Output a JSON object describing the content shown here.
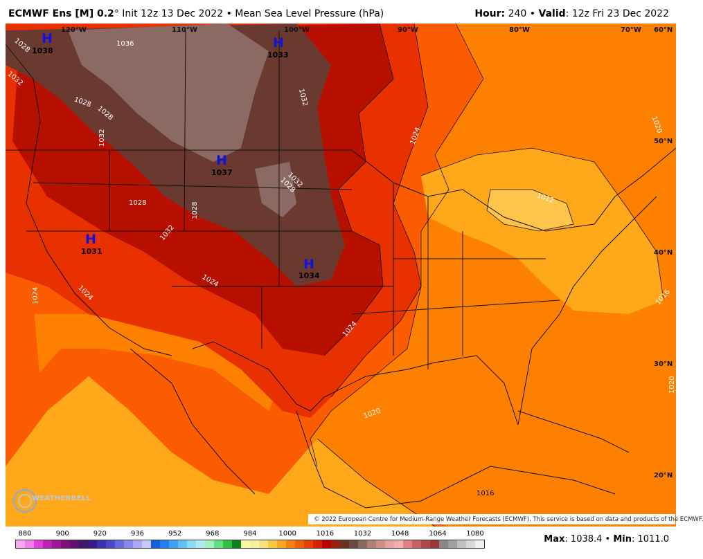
{
  "header": {
    "model": "ECMWF Ens [M] 0.2",
    "degree": "°",
    "init": " Init 12z 13 Dec 2022 • Mean Sea Level Pressure (hPa)",
    "hour_label": "Hour:",
    "hour_value": " 240 • ",
    "valid_label": "Valid",
    "valid_value": ": 12z Fri 23 Dec 2022"
  },
  "map": {
    "lon_labels": [
      "120°W",
      "110°W",
      "100°W",
      "90°W",
      "80°W",
      "70°W"
    ],
    "lat_labels": [
      "60°N",
      "50°N",
      "40°N",
      "30°N",
      "20°N"
    ],
    "highs": [
      {
        "letter": "H",
        "value": "1038"
      },
      {
        "letter": "H",
        "value": "1033"
      },
      {
        "letter": "H",
        "value": "1037"
      },
      {
        "letter": "H",
        "value": "1031"
      },
      {
        "letter": "H",
        "value": "1034"
      }
    ],
    "contour_labels": [
      "1036",
      "1032",
      "1032",
      "1032",
      "1028",
      "1028",
      "1028",
      "1028",
      "1032",
      "1028",
      "1024",
      "1024",
      "1024",
      "1024",
      "1024",
      "1020",
      "1020",
      "1020",
      "1016",
      "1016",
      "1012",
      "1028",
      "1032"
    ],
    "credit": "© 2022 European Centre for Medium-Range Weather Forecasts (ECMWF). This service is based on data and products of the ECMWF.",
    "logo_text": "WEATHERBELL"
  },
  "colorbar": {
    "ticks": [
      "880",
      "900",
      "920",
      "936",
      "952",
      "968",
      "984",
      "1000",
      "1016",
      "1032",
      "1048",
      "1064",
      "1080"
    ],
    "colors": [
      "#f9a8f0",
      "#f080e6",
      "#e040d8",
      "#c020b8",
      "#a01898",
      "#801078",
      "#601070",
      "#401868",
      "#3a1a8a",
      "#3a30b0",
      "#4848d0",
      "#6868e0",
      "#8888ec",
      "#a8a8f4",
      "#c8c8f8",
      "#1060e0",
      "#2080f0",
      "#40a0f8",
      "#60c0f8",
      "#90d8f8",
      "#b0e8f0",
      "#a0f0c0",
      "#60e080",
      "#30c040",
      "#108020",
      "#f8f8a0",
      "#f8f0a0",
      "#f8e080",
      "#f8c840",
      "#f8a820",
      "#f88010",
      "#f06000",
      "#e84000",
      "#d82000",
      "#c00000",
      "#982010",
      "#6a3020",
      "#6a4a40",
      "#8a6a60",
      "#b08070",
      "#d09080",
      "#e8a0a0",
      "#f0b0b0",
      "#e08080",
      "#c86060",
      "#b04848",
      "#983838",
      "#888888",
      "#a0a0a0",
      "#c0c0c0",
      "#d8d8d8",
      "#f0f0f0"
    ]
  },
  "stats": {
    "max_label": "Max",
    "max_value": ": 1038.4 • ",
    "min_label": "Min",
    "min_value": ": 1011.0"
  },
  "colors": {
    "c1012": "#ffc44a",
    "c1016": "#ffa81a",
    "c1020": "#fe8000",
    "c1024": "#fb5c00",
    "c1028": "#e83000",
    "c1032": "#b81000",
    "c1036": "#6a3a30",
    "c1040": "#8a6a62",
    "high_letter": "#1010e0"
  }
}
